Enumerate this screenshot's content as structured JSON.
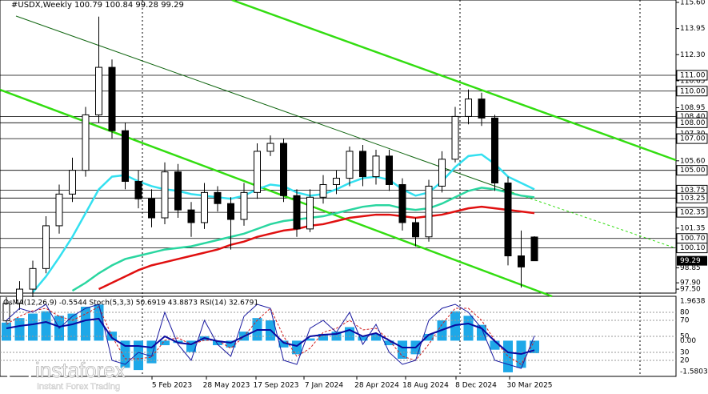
{
  "chart_data": {
    "type": "candlestick",
    "title": "#USDX,Weekly 100.79 100.84 99.28 99.29",
    "open": [
      95.5,
      96.6,
      97.5,
      98.8,
      101.5,
      103.5,
      105.0,
      108.5,
      111.5,
      107.5,
      104.3,
      103.2,
      102.0,
      104.9,
      102.5,
      101.7,
      103.6,
      102.9,
      101.9,
      103.6,
      106.2,
      106.7,
      103.4,
      101.3,
      103.3,
      104.1,
      104.5,
      106.2,
      104.6,
      105.9,
      104.1,
      101.7,
      100.8,
      104.0,
      105.7,
      108.4,
      109.5,
      108.3,
      104.2,
      99.6,
      100.79
    ],
    "high": [
      97.0,
      98.0,
      99.3,
      102.1,
      104.1,
      105.8,
      109.0,
      114.7,
      112.0,
      108.0,
      105.0,
      103.8,
      105.5,
      105.4,
      103.0,
      104.2,
      104.0,
      103.3,
      104.2,
      106.7,
      107.2,
      107.0,
      103.8,
      103.8,
      104.7,
      105.0,
      106.5,
      106.6,
      106.3,
      106.3,
      104.5,
      102.0,
      104.4,
      106.2,
      109.0,
      110.1,
      109.9,
      108.5,
      104.6,
      101.2,
      100.84
    ],
    "low": [
      95.3,
      96.2,
      97.0,
      98.5,
      101.0,
      103.0,
      104.6,
      108.0,
      107.0,
      103.8,
      102.6,
      101.4,
      101.6,
      102.0,
      100.8,
      101.3,
      102.4,
      100.0,
      101.5,
      103.2,
      105.9,
      103.0,
      100.8,
      101.1,
      102.9,
      103.5,
      104.0,
      104.0,
      104.1,
      103.7,
      101.2,
      100.2,
      100.5,
      103.6,
      105.5,
      107.9,
      107.8,
      103.7,
      99.0,
      97.6,
      99.28
    ],
    "close": [
      96.6,
      97.5,
      98.8,
      101.5,
      103.5,
      105.0,
      108.5,
      111.5,
      107.5,
      104.3,
      103.2,
      102.0,
      104.9,
      102.5,
      101.7,
      103.6,
      102.9,
      101.9,
      103.6,
      106.2,
      106.7,
      103.4,
      101.3,
      103.3,
      104.1,
      104.5,
      106.2,
      104.6,
      105.9,
      104.1,
      101.7,
      100.8,
      104.0,
      105.7,
      108.4,
      109.5,
      108.3,
      104.2,
      99.6,
      98.9,
      99.29
    ],
    "series": [
      {
        "color": "#33e0f0",
        "values": [
          null,
          null,
          97.3,
          98.3,
          99.5,
          100.8,
          102.3,
          103.8,
          104.6,
          104.7,
          104.3,
          104.0,
          103.8,
          103.7,
          103.5,
          103.4,
          103.3,
          103.2,
          103.4,
          103.8,
          104.1,
          104.0,
          103.6,
          103.4,
          103.5,
          103.8,
          104.2,
          104.5,
          104.6,
          104.4,
          103.8,
          103.4,
          103.6,
          104.3,
          105.2,
          105.9,
          106.0,
          105.4,
          104.6,
          104.2,
          103.8
        ]
      },
      {
        "color": "#2ad6a0",
        "values": [
          null,
          null,
          null,
          null,
          null,
          97.4,
          97.9,
          98.5,
          99.0,
          99.4,
          99.6,
          99.8,
          100.0,
          100.1,
          100.2,
          100.4,
          100.6,
          100.8,
          101.0,
          101.3,
          101.6,
          101.8,
          101.9,
          102.0,
          102.1,
          102.3,
          102.5,
          102.7,
          102.8,
          102.8,
          102.6,
          102.5,
          102.6,
          102.9,
          103.3,
          103.7,
          103.9,
          103.8,
          103.6,
          103.4,
          103.3
        ]
      },
      {
        "color": "#e01010",
        "values": [
          null,
          null,
          null,
          null,
          null,
          null,
          null,
          97.5,
          97.9,
          98.3,
          98.7,
          99.0,
          99.2,
          99.4,
          99.6,
          99.8,
          100.0,
          100.3,
          100.5,
          100.8,
          101.0,
          101.2,
          101.3,
          101.5,
          101.6,
          101.8,
          102.0,
          102.1,
          102.2,
          102.2,
          102.1,
          102.0,
          102.1,
          102.2,
          102.4,
          102.6,
          102.7,
          102.6,
          102.5,
          102.4,
          102.3
        ]
      }
    ],
    "ylim": [
      97.25,
      115.75
    ],
    "yticks": [
      {
        "value": 115.6,
        "label": "115.60"
      },
      113.95,
      {
        "value": 112.3,
        "label": "112.30"
      },
      110.65,
      {
        "value": 108.95,
        "label": "108.95"
      },
      {
        "value": 107.3,
        "label": "107.30"
      },
      {
        "value": 105.6,
        "label": "105.60"
      },
      101.35,
      98.85,
      {
        "value": 97.9,
        "label": "97.90"
      },
      {
        "value": 97.5,
        "label": "97.50"
      }
    ],
    "levels": [
      {
        "value": 111,
        "label": "111.00"
      },
      {
        "value": 110,
        "label": "110.00"
      },
      {
        "value": 108.4,
        "label": "108.40"
      },
      {
        "value": 108,
        "label": "108.00"
      },
      {
        "value": 107,
        "label": "107.00"
      },
      {
        "value": 105,
        "label": "105.00"
      },
      103.75,
      103.25,
      102.35,
      {
        "value": 100.7,
        "label": "100.70"
      },
      {
        "value": 100.1,
        "label": "100.10"
      }
    ],
    "current_price": 99.29,
    "x_labels": [
      "5 Feb 2023",
      "28 May 2023",
      "17 Sep 2023",
      "7 Jan 2024",
      "28 Apr 2024",
      "18 Aug 2024",
      "8 Dec 2024",
      "30 Mar 2025"
    ],
    "indicator": {
      "title": "OsMA(12,26,9) -0.5544 Stoch(5,3,3) 50.6919 43.8873 RSI(14) 32.6791",
      "osma": [
        0.8,
        1.0,
        1.2,
        1.3,
        1.1,
        1.2,
        1.5,
        1.6,
        0.4,
        -1.2,
        -1.3,
        -1.0,
        -0.2,
        -0.1,
        -0.5,
        0.2,
        -0.2,
        -0.3,
        0.4,
        1.0,
        0.9,
        -0.3,
        -0.6,
        0.1,
        0.3,
        0.4,
        0.6,
        0.2,
        0.3,
        -0.2,
        -0.8,
        -0.6,
        0.3,
        0.9,
        1.3,
        1.1,
        0.7,
        -0.4,
        -1.4,
        -1.2,
        -0.5544
      ],
      "osma_color": "#1ea8e8",
      "stoch_main": [
        70,
        85,
        80,
        90,
        60,
        75,
        85,
        90,
        20,
        15,
        30,
        25,
        80,
        40,
        20,
        70,
        40,
        25,
        75,
        90,
        85,
        20,
        15,
        60,
        70,
        55,
        80,
        40,
        65,
        30,
        15,
        20,
        70,
        85,
        90,
        80,
        60,
        20,
        15,
        10,
        50.6919
      ],
      "stoch_signal": [
        65,
        75,
        82,
        85,
        75,
        70,
        78,
        87,
        50,
        22,
        22,
        24,
        45,
        48,
        40,
        45,
        45,
        35,
        50,
        70,
        85,
        50,
        25,
        35,
        55,
        60,
        70,
        58,
        60,
        45,
        25,
        20,
        40,
        65,
        85,
        85,
        70,
        45,
        25,
        15,
        43.8873
      ],
      "rsi": [
        60,
        63,
        65,
        68,
        62,
        65,
        70,
        72,
        48,
        38,
        38,
        36,
        50,
        42,
        40,
        48,
        44,
        42,
        50,
        58,
        58,
        42,
        38,
        50,
        52,
        53,
        58,
        50,
        54,
        45,
        36,
        36,
        52,
        58,
        64,
        66,
        60,
        44,
        30,
        28,
        32.6791
      ],
      "osma_lim": [
        -1.5803,
        1.9638
      ],
      "osma_ticks": [
        {
          "value": 1.9638,
          "label": "1.9638"
        },
        {
          "value": 0,
          "label": "0.00"
        },
        {
          "value": -1.5803,
          "label": "-1.5803"
        }
      ],
      "osc_lim": [
        0,
        100
      ],
      "osc_ticks": [
        80,
        70,
        50,
        30,
        20
      ]
    },
    "watermark": {
      "brand": "instaforex",
      "tagline": "Instant Forex Trading"
    }
  }
}
